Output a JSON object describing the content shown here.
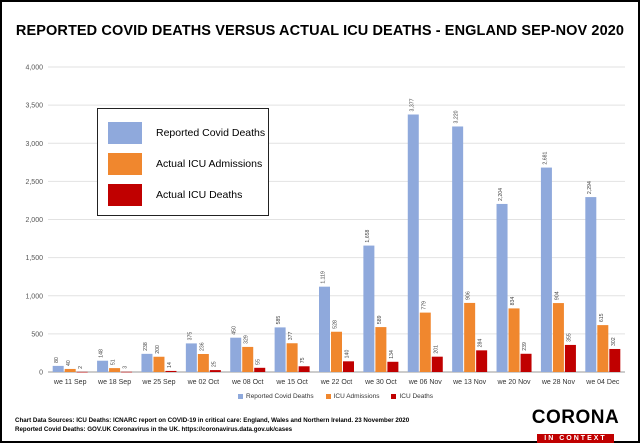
{
  "title": "REPORTED COVID DEATHS VERSUS ACTUAL ICU DEATHS - ENGLAND SEP-NOV 2020",
  "chart_data": {
    "type": "bar",
    "title": "REPORTED COVID DEATHS VERSUS ACTUAL ICU DEATHS - ENGLAND SEP-NOV 2020",
    "categories": [
      "we 11 Sep",
      "we 18 Sep",
      "we 25 Sep",
      "we 02 Oct",
      "we 08 Oct",
      "we 15 Oct",
      "we 22 Oct",
      "we 30 Oct",
      "we 06 Nov",
      "we 13 Nov",
      "we 20 Nov",
      "we 28 Nov",
      "we 04 Dec"
    ],
    "series": [
      {
        "name": "Reported Covid Deaths",
        "legend_label": "Reported Covid Deaths",
        "color": "#8fa9dc",
        "values": [
          80,
          148,
          238,
          375,
          450,
          585,
          1119,
          1658,
          3377,
          3220,
          2204,
          2681,
          2294
        ],
        "labels": [
          "80",
          "148",
          "238",
          "375",
          "450",
          "585",
          "1,119",
          "1,658",
          "3,377",
          "3,220",
          "2,204",
          "2,681",
          "2,294"
        ]
      },
      {
        "name": "ICU Admissions",
        "legend_label": "Actual ICU Admissions",
        "color": "#f0872e",
        "values": [
          40,
          51,
          200,
          236,
          329,
          377,
          528,
          589,
          779,
          906,
          834,
          904,
          615
        ],
        "labels": [
          "40",
          "51",
          "200",
          "236",
          "329",
          "377",
          "528",
          "589",
          "779",
          "906",
          "834",
          "904",
          "615"
        ]
      },
      {
        "name": "ICU Deaths",
        "legend_label": "Actual ICU Deaths",
        "color": "#c00000",
        "values": [
          2,
          3,
          14,
          25,
          55,
          75,
          140,
          134,
          201,
          284,
          239,
          355,
          302
        ],
        "labels": [
          "2",
          "3",
          "14",
          "25",
          "55",
          "75",
          "140",
          "134",
          "201",
          "284",
          "239",
          "355",
          "302"
        ]
      }
    ],
    "ylim": [
      0,
      4000
    ],
    "yticks": [
      0,
      500,
      1000,
      1500,
      2000,
      2500,
      3000,
      3500,
      4000
    ],
    "ytick_labels": [
      "0",
      "500",
      "1,000",
      "1,500",
      "2,000",
      "2,500",
      "3,000",
      "3,500",
      "4,000"
    ],
    "xlabel": "",
    "ylabel": "",
    "grid": true
  },
  "legend_box": [
    {
      "label": "Reported Covid Deaths",
      "color": "#8fa9dc"
    },
    {
      "label": "Actual ICU Admissions",
      "color": "#f0872e"
    },
    {
      "label": "Actual ICU Deaths",
      "color": "#c00000"
    }
  ],
  "bottom_legend": [
    {
      "label": "Reported Covid Deaths",
      "color": "#8fa9dc"
    },
    {
      "label": "ICU Admissions",
      "color": "#f0872e"
    },
    {
      "label": "ICU Deaths",
      "color": "#c00000"
    }
  ],
  "sources": {
    "line1": "Chart Data Sources:  ICU Deaths: ICNARC report on COVID-19 in critical care: England, Wales and Northern Ireland. 23 November 2020",
    "line2": "Reported Covid Deaths: GOV.UK Coronavirus in the UK.  https://coronavirus.data.gov.uk/cases"
  },
  "logo": {
    "main": "CORONA",
    "sub": "IN CONTEXT"
  }
}
